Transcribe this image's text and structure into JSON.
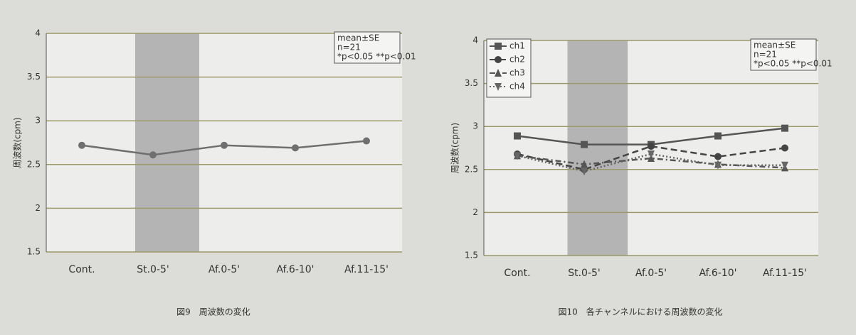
{
  "chart_data": [
    {
      "type": "line",
      "title": "図9　周波数の変化",
      "ylabel": "周波数(cpm)",
      "categories": [
        "Cont.",
        "St.0-5'",
        "Af.0-5'",
        "Af.6-10'",
        "Af.11-15'"
      ],
      "values": [
        2.72,
        2.61,
        2.72,
        2.69,
        2.77
      ],
      "color": "#6f6f6f",
      "highlight": "St.0-5'",
      "annotation": [
        "mean±SE",
        "n=21",
        "*p<0.05 **p<0.01"
      ],
      "ylim": [
        1.5,
        4
      ],
      "yticks": [
        1.5,
        2,
        2.5,
        3,
        3.5,
        4
      ],
      "grid": true
    },
    {
      "type": "line",
      "title": "図10　各チャンネルにおける周波数の変化",
      "ylabel": "周波数(cpm)",
      "categories": [
        "Cont.",
        "St.0-5'",
        "Af.0-5'",
        "Af.6-10'",
        "Af.11-15'"
      ],
      "highlight": "St.0-5'",
      "series": [
        {
          "name": "ch1",
          "color": "#555555",
          "marker": "square",
          "dash": "solid",
          "values": [
            2.89,
            2.79,
            2.79,
            2.89,
            2.98
          ]
        },
        {
          "name": "ch2",
          "color": "#444444",
          "marker": "circle",
          "dash": "dashed",
          "values": [
            2.68,
            2.5,
            2.77,
            2.65,
            2.75
          ]
        },
        {
          "name": "ch3",
          "color": "#555555",
          "marker": "triangle",
          "dash": "dashdot",
          "values": [
            2.66,
            2.56,
            2.63,
            2.56,
            2.52
          ]
        },
        {
          "name": "ch4",
          "color": "#666666",
          "marker": "triangle-down",
          "dash": "dotted",
          "values": [
            2.66,
            2.48,
            2.68,
            2.55,
            2.55
          ]
        }
      ],
      "annotation": [
        "mean±SE",
        "n=21",
        "*p<0.05 **p<0.01"
      ],
      "ylim": [
        1.5,
        4
      ],
      "yticks": [
        1.5,
        2,
        2.5,
        3,
        3.5,
        4
      ],
      "grid": true
    }
  ]
}
